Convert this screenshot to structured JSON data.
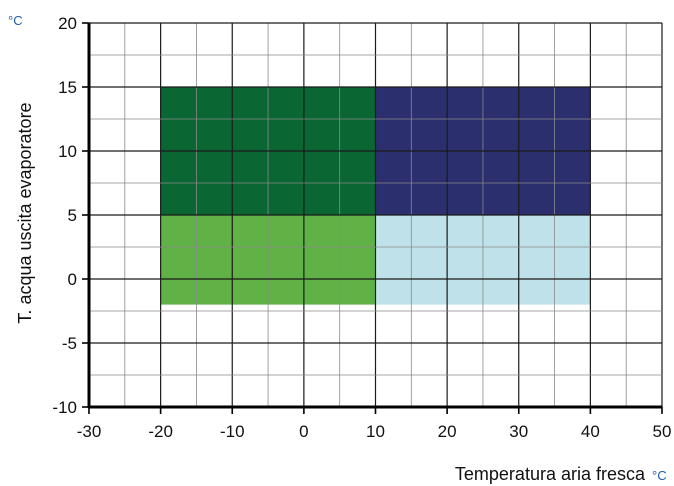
{
  "chart_data": {
    "type": "heatmap",
    "xlabel": "Temperatura aria fresca",
    "ylabel": "T. acqua uscita evaporatore",
    "x_unit": "°C",
    "y_unit": "°C",
    "xlim": [
      -30,
      50
    ],
    "ylim": [
      -10,
      20
    ],
    "x_ticks": [
      -30,
      -20,
      -10,
      0,
      10,
      20,
      30,
      40,
      50
    ],
    "y_ticks": [
      -10,
      -5,
      0,
      5,
      10,
      15,
      20
    ],
    "x_tick_labels": [
      "-30",
      "-20",
      "-10",
      "0",
      "10",
      "20",
      "30",
      "40",
      "50"
    ],
    "y_tick_labels": [
      "-10",
      "-5",
      "0",
      "5",
      "10",
      "15",
      "20"
    ],
    "x_minor_step": 5,
    "y_minor_step": 2.5,
    "grid": true,
    "regions": [
      {
        "x": [
          -20,
          10
        ],
        "y": [
          5,
          15
        ],
        "color": "#0a6632"
      },
      {
        "x": [
          10,
          40
        ],
        "y": [
          5,
          15
        ],
        "color": "#2b2f6e"
      },
      {
        "x": [
          -20,
          10
        ],
        "y": [
          -2,
          5
        ],
        "color": "#60b246"
      },
      {
        "x": [
          10,
          40
        ],
        "y": [
          -2,
          5
        ],
        "color": "#bfe2ea"
      }
    ],
    "colors": {
      "unit_text": "#1f5fa8",
      "grid_major": "#1a1a1a",
      "grid_minor": "#8a8a8a",
      "axis": "#000000"
    }
  }
}
